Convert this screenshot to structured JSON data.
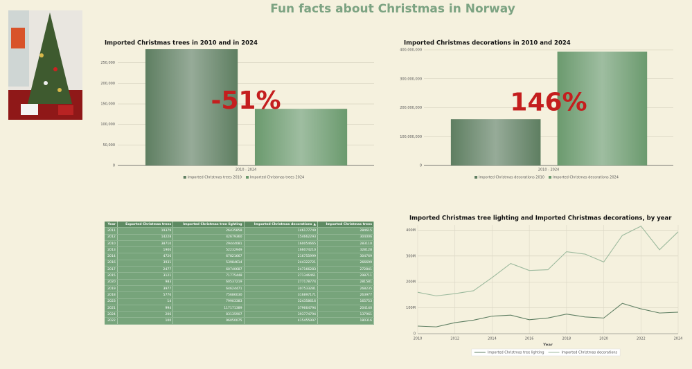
{
  "title": "Fun facts about Christmas in Norway",
  "chart_data": [
    {
      "type": "bar",
      "title": "Imported Christmas trees in 2010 and in 2024",
      "annotation": "-51%",
      "categories": [
        "2010 - 2024"
      ],
      "series": [
        {
          "name": "Imported Christmas trees 2010",
          "color": "#5e7e61",
          "values": [
            283110
          ]
        },
        {
          "name": "Imported Christmas trees 2024",
          "color": "#6b9a6e",
          "values": [
            137961
          ]
        }
      ],
      "ylim": [
        0,
        290000
      ],
      "yticks": [
        0,
        {
          "value": 50000,
          "label": "50,000"
        },
        {
          "value": 100000,
          "label": "100,000"
        },
        {
          "value": 150000,
          "label": "150,000"
        },
        {
          "value": 200000,
          "label": "200,000"
        },
        {
          "value": 250000,
          "label": "250,000"
        }
      ],
      "grid": true
    },
    {
      "type": "bar",
      "title": "Imported Christmas decorations in 2010 and 2024",
      "annotation": "146%",
      "categories": [
        "2010 - 2024"
      ],
      "series": [
        {
          "name": "Imported Christmas decorations 2010",
          "color": "#5e7e61",
          "values": [
            160054665
          ]
        },
        {
          "name": "Imported Christmas decorations 2024",
          "color": "#6b9a6e",
          "values": [
            393774794
          ]
        }
      ],
      "ylim": [
        0,
        400000000
      ],
      "yticks": [
        0,
        {
          "value": 100000000,
          "label": "100,000,000"
        },
        {
          "value": 200000000,
          "label": "200,000,000"
        },
        {
          "value": 300000000,
          "label": "300,000,000"
        },
        {
          "value": 400000000,
          "label": "400,000,000"
        }
      ],
      "grid": true
    },
    {
      "type": "line",
      "title": "Imported Christmas tree lighting and Imported Christmas decorations, by year",
      "xlabel": "Year",
      "x": [
        2010,
        2011,
        2012,
        2013,
        2014,
        2015,
        2016,
        2017,
        2018,
        2019,
        2020,
        2021,
        2022,
        2023,
        2024
      ],
      "series": [
        {
          "name": "Imported Christmas tree lighting",
          "color": "#5f7f63",
          "values": [
            29444081,
            26435858,
            42679360,
            52232949,
            67821667,
            71775448,
            53984614,
            60740687,
            75686030,
            64624471,
            60537219,
            117171389,
            96050075,
            79903383,
            83135907
          ]
        },
        {
          "name": "Imported Christmas decorations",
          "color": "#9dba9e",
          "values": [
            160054665,
            146177749,
            154662293,
            166074210,
            216755999,
            271346461,
            244322721,
            247166283,
            316897171,
            307533281,
            277178774,
            379664794,
            415455997,
            324358616,
            393774794
          ]
        }
      ],
      "xlim": [
        2010,
        2024
      ],
      "xticks": [
        2010,
        2012,
        2014,
        2016,
        2018,
        2020,
        2022,
        2024
      ],
      "ylim": [
        0,
        420000000
      ],
      "yticks": [
        0,
        {
          "value": 100000000,
          "label": "100M"
        },
        {
          "value": 200000000,
          "label": "200M"
        },
        {
          "value": 300000000,
          "label": "300M"
        },
        {
          "value": 400000000,
          "label": "400M"
        }
      ],
      "grid": true
    }
  ],
  "table": {
    "columns": [
      "Year",
      "Exported Christmas trees",
      "Imported Christmas tree lighting",
      "Imported Christmas decorations",
      "Imported Christmas trees"
    ],
    "rows": [
      [
        2011,
        19379,
        26435858,
        146177749,
        284615
      ],
      [
        2012,
        14228,
        42679360,
        154662293,
        304006
      ],
      [
        2010,
        38710,
        29444081,
        160054665,
        283110
      ],
      [
        2013,
        1900,
        52232949,
        166074210,
        328128
      ],
      [
        2014,
        4726,
        67821667,
        216755999,
        304769
      ],
      [
        2016,
        3931,
        53984614,
        244322721,
        266699
      ],
      [
        2017,
        2477,
        60740687,
        247166283,
        272841
      ],
      [
        2015,
        3121,
        71775448,
        271346461,
        298711
      ],
      [
        2020,
        983,
        60537219,
        277178774,
        281581
      ],
      [
        2019,
        3977,
        64624471,
        307533281,
        268235
      ],
      [
        2018,
        5776,
        75686030,
        316897171,
        263977
      ],
      [
        2023,
        14,
        79903383,
        324358616,
        165753
      ],
      [
        2021,
        994,
        117171389,
        379664794,
        204140
      ],
      [
        2024,
        206,
        83135907,
        393774794,
        137961
      ],
      [
        2022,
        100,
        96050075,
        415455997,
        180316
      ]
    ]
  }
}
